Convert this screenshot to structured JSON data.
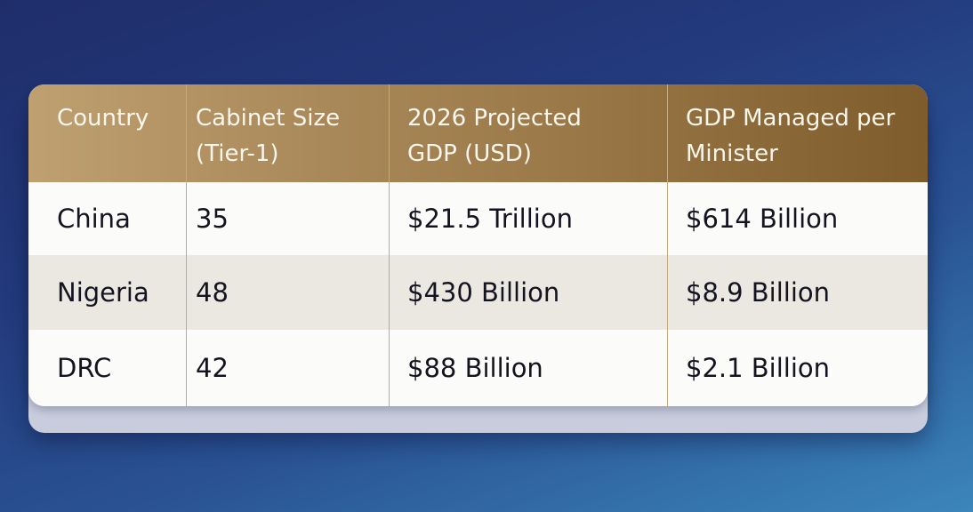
{
  "table": {
    "headers": [
      "Country",
      "Cabinet Size\n(Tier-1)",
      "2026 Projected\nGDP (USD)",
      "GDP Managed per\nMinister"
    ],
    "rows": [
      [
        "China",
        "35",
        "$21.5 Trillion",
        "$614 Billion"
      ],
      [
        "Nigeria",
        "48",
        "$430 Billion",
        "$8.9 Billion"
      ],
      [
        "DRC",
        "42",
        "$88 Billion",
        "$2.1 Billion"
      ]
    ]
  }
}
